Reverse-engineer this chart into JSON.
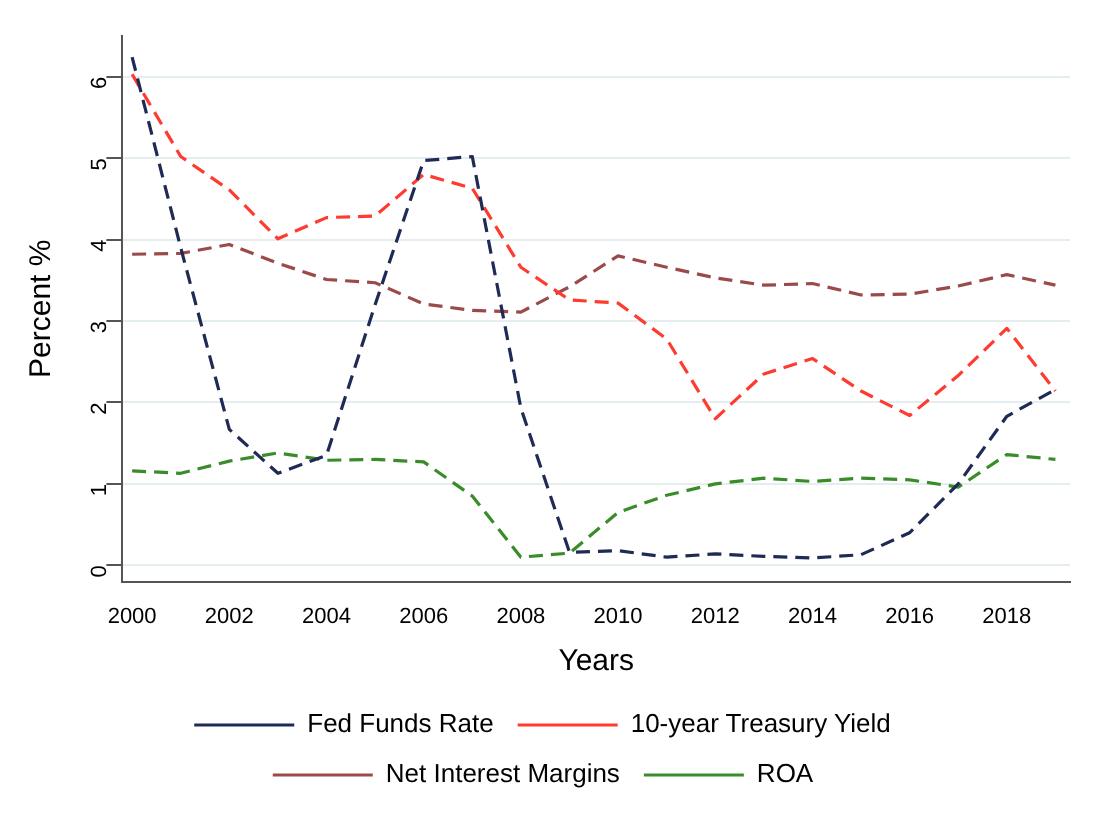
{
  "chart_data": {
    "type": "line",
    "xlabel": "Years",
    "ylabel": "Percent %",
    "x": [
      2000,
      2001,
      2002,
      2003,
      2004,
      2005,
      2006,
      2007,
      2008,
      2009,
      2010,
      2011,
      2012,
      2013,
      2014,
      2015,
      2016,
      2017,
      2018,
      2019
    ],
    "series": [
      {
        "name": "Fed Funds Rate",
        "color": "#1f2a55",
        "line_style": "dashed",
        "values": [
          6.24,
          3.9,
          1.67,
          1.13,
          1.35,
          3.2,
          4.97,
          5.02,
          1.93,
          0.16,
          0.18,
          0.1,
          0.14,
          0.11,
          0.09,
          0.13,
          0.4,
          1.0,
          1.83,
          2.16
        ]
      },
      {
        "name": "10-year Treasury Yield",
        "color": "#ff3b30",
        "line_style": "dashed",
        "values": [
          6.03,
          5.02,
          4.61,
          4.01,
          4.27,
          4.29,
          4.8,
          4.63,
          3.66,
          3.26,
          3.22,
          2.78,
          1.8,
          2.35,
          2.54,
          2.14,
          1.84,
          2.33,
          2.91,
          2.14
        ]
      },
      {
        "name": "Net Interest Margins",
        "color": "#9b4a4a",
        "line_style": "dashed",
        "values": [
          3.82,
          3.83,
          3.94,
          3.71,
          3.51,
          3.47,
          3.21,
          3.13,
          3.11,
          3.42,
          3.8,
          3.66,
          3.53,
          3.44,
          3.46,
          3.32,
          3.33,
          3.43,
          3.57,
          3.44
        ]
      },
      {
        "name": "ROA",
        "color": "#3a8c2a",
        "line_style": "dashed",
        "values": [
          1.16,
          1.13,
          1.28,
          1.38,
          1.29,
          1.3,
          1.27,
          0.85,
          0.1,
          0.15,
          0.65,
          0.86,
          1.0,
          1.07,
          1.03,
          1.07,
          1.05,
          0.96,
          1.36,
          1.3
        ]
      }
    ],
    "xlim": [
      1999.8,
      2019.3
    ],
    "xticks": [
      2000,
      2002,
      2004,
      2006,
      2008,
      2010,
      2012,
      2014,
      2016,
      2018
    ],
    "ylim": [
      -0.2,
      6.5
    ],
    "yticks": [
      0,
      1,
      2,
      3,
      4,
      5,
      6
    ],
    "grid": "y",
    "legend": "bottom",
    "marker": "none"
  }
}
